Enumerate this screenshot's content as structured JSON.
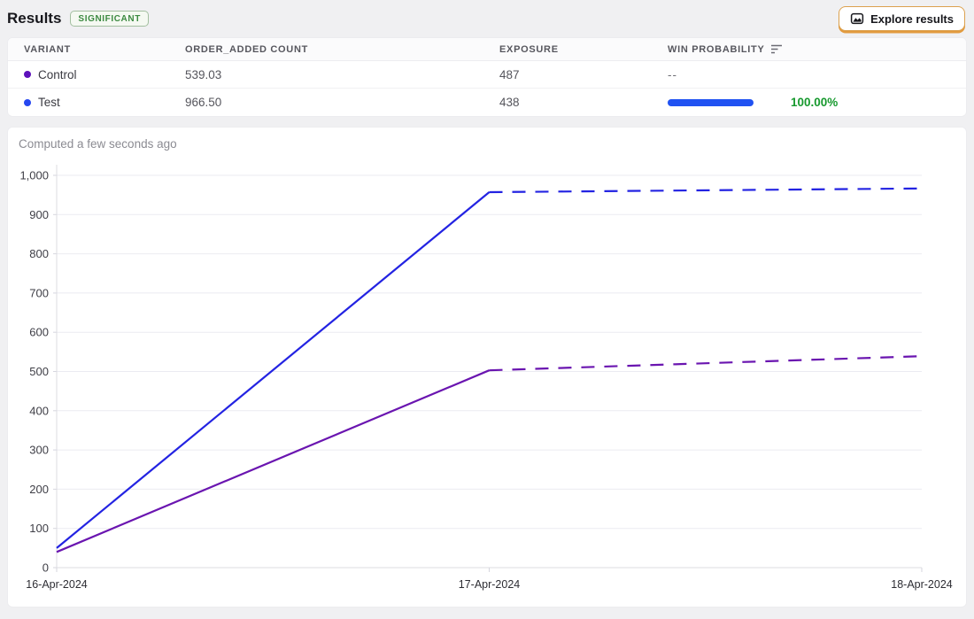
{
  "header": {
    "title": "Results",
    "badge": "SIGNIFICANT",
    "explore_button": "Explore results"
  },
  "table": {
    "columns": [
      "VARIANT",
      "ORDER_ADDED COUNT",
      "EXPOSURE",
      "WIN PROBABILITY"
    ],
    "rows": [
      {
        "variant": "Control",
        "order_added_count": "539.03",
        "exposure": "487",
        "win_probability": "--"
      },
      {
        "variant": "Test",
        "order_added_count": "966.50",
        "exposure": "438",
        "win_probability": "100.00%"
      }
    ]
  },
  "chart": {
    "computed_label": "Computed a few seconds ago"
  },
  "chart_data": {
    "type": "line",
    "title": "",
    "x_labels": [
      "16-Apr-2024",
      "17-Apr-2024",
      "18-Apr-2024"
    ],
    "y_ticks": [
      0,
      100,
      200,
      300,
      400,
      500,
      600,
      700,
      800,
      900,
      1000
    ],
    "ylim": [
      0,
      1000
    ],
    "grid": true,
    "legend": "none",
    "series": [
      {
        "name": "Control",
        "color": "#6a15b0",
        "x": [
          0,
          1,
          2
        ],
        "values": [
          40,
          503,
          539
        ],
        "solid_until_index": 1,
        "style_after": "dashed"
      },
      {
        "name": "Test",
        "color": "#2323e2",
        "x": [
          0,
          1,
          2
        ],
        "values": [
          50,
          957,
          966.5
        ],
        "solid_until_index": 1,
        "style_after": "dashed"
      }
    ]
  },
  "colors": {
    "page_background": "#f0f0f2",
    "badge_green": "#3c8a41",
    "win_green": "#17992e",
    "win_bar_blue": "#2052f2",
    "control_purple": "#5d11bb",
    "test_blue": "#2647f0",
    "line_purple": "#6a15b0",
    "line_blue": "#2323e2",
    "button_border_orange": "#dca14f",
    "gridline": "#ebebf1"
  }
}
